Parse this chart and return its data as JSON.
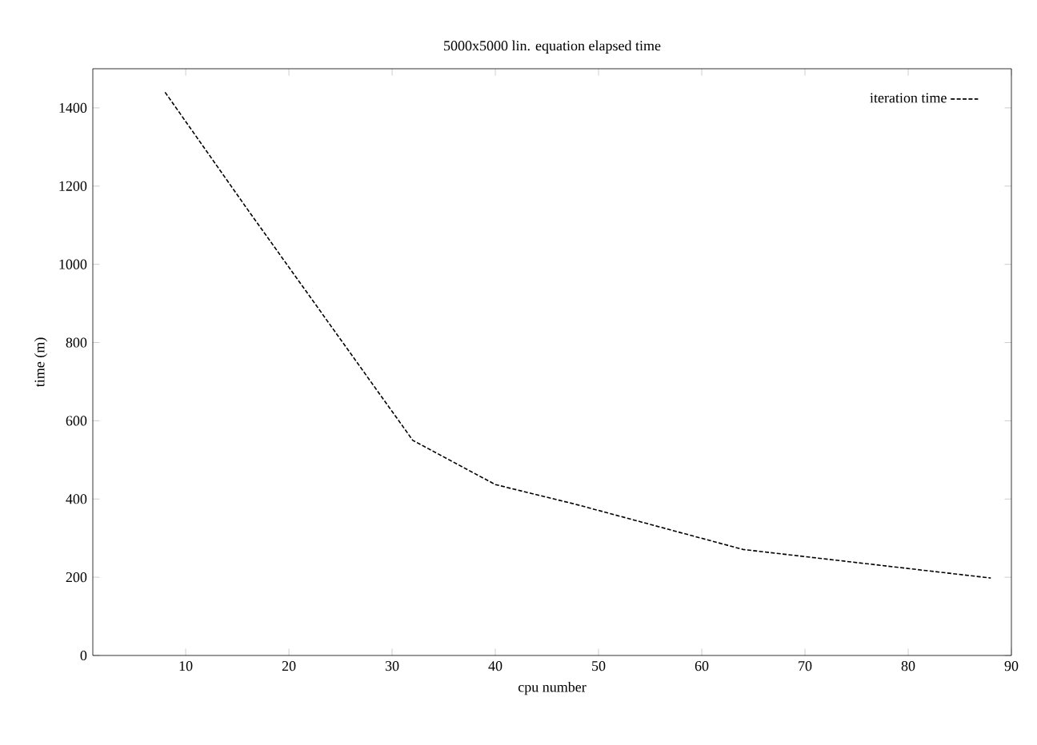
{
  "chart_data": {
    "type": "line",
    "title": "5000x5000 lin. equation elapsed time",
    "xlabel": "cpu number",
    "ylabel": "time (m)",
    "xlim": [
      1,
      90
    ],
    "xticks": [
      10,
      20,
      30,
      40,
      50,
      60,
      70,
      80,
      90
    ],
    "ylim": [
      0,
      1500
    ],
    "yticks": [
      0,
      200,
      400,
      600,
      800,
      1000,
      1200,
      1400
    ],
    "legend": "top right",
    "line_style": "dashed",
    "grid": false,
    "series": [
      {
        "name": "iteration time",
        "color": "#000000",
        "x": [
          8,
          16,
          32,
          40,
          48,
          64,
          88
        ],
        "values": [
          1440,
          1140,
          550,
          437,
          385,
          271,
          198
        ]
      }
    ]
  }
}
